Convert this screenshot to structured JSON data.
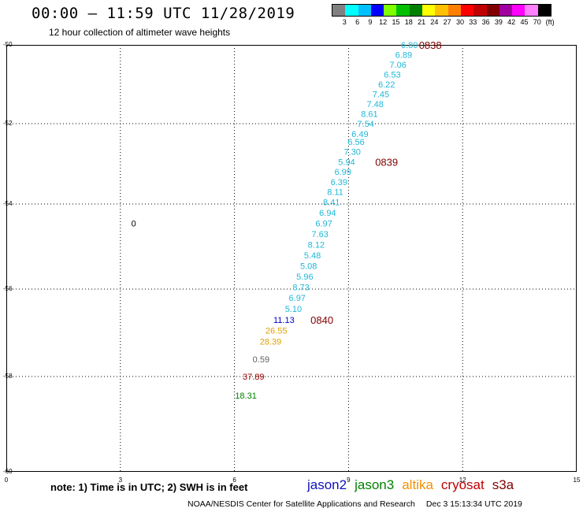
{
  "header": {
    "title": "00:00 – 11:59 UTC 11/28/2019",
    "subtitle": "12 hour collection of altimeter wave heights"
  },
  "scale": {
    "colors": [
      "#808080",
      "#00ffff",
      "#00c0ff",
      "#0000ff",
      "#80ff00",
      "#00c000",
      "#008000",
      "#ffff00",
      "#ffc000",
      "#ff8000",
      "#ff0000",
      "#c00000",
      "#800000",
      "#a000a0",
      "#ff00ff",
      "#ff80ff",
      "#000000"
    ],
    "labels": [
      "3",
      "6",
      "9",
      "12",
      "15",
      "18",
      "21",
      "24",
      "27",
      "30",
      "33",
      "36",
      "39",
      "42",
      "45",
      "70",
      "(ft)"
    ]
  },
  "chart_data": {
    "type": "scatter",
    "title": "00:00 – 11:59 UTC 11/28/2019",
    "subtitle": "12 hour collection of altimeter wave heights",
    "x_ticks": [
      "0",
      "3",
      "6",
      "9",
      "12",
      "15"
    ],
    "y_ticks": [
      "-50",
      "-52",
      "-54",
      "-56",
      "-58",
      "-60"
    ],
    "xlim": [
      0,
      15
    ],
    "ylim": [
      -60,
      -50
    ],
    "grid": true,
    "points": [
      {
        "x": 10.6,
        "y": -50.0,
        "label": "6.80",
        "color": "#1fb8d8"
      },
      {
        "x": 10.45,
        "y": -50.25,
        "label": "6.89",
        "color": "#1fb8d8"
      },
      {
        "x": 10.3,
        "y": -50.5,
        "label": "7.06",
        "color": "#1fb8d8"
      },
      {
        "x": 10.15,
        "y": -50.75,
        "label": "6.53",
        "color": "#1fb8d8"
      },
      {
        "x": 10.0,
        "y": -51.0,
        "label": "6.22",
        "color": "#1fb8d8"
      },
      {
        "x": 9.85,
        "y": -51.25,
        "label": "7.45",
        "color": "#1fb8d8"
      },
      {
        "x": 9.7,
        "y": -51.5,
        "label": "7.48",
        "color": "#1fb8d8"
      },
      {
        "x": 9.55,
        "y": -51.75,
        "label": "8.61",
        "color": "#1fb8d8"
      },
      {
        "x": 9.45,
        "y": -52.0,
        "label": "7.54",
        "color": "#1fb8d8"
      },
      {
        "x": 9.3,
        "y": -52.25,
        "label": "6.49",
        "color": "#1fb8d8"
      },
      {
        "x": 9.2,
        "y": -52.45,
        "label": "6.56",
        "color": "#1fb8d8"
      },
      {
        "x": 9.1,
        "y": -52.7,
        "label": "7.30",
        "color": "#1fb8d8"
      },
      {
        "x": 8.95,
        "y": -52.95,
        "label": "5.94",
        "color": "#1fb8d8"
      },
      {
        "x": 8.85,
        "y": -53.2,
        "label": "6.99",
        "color": "#1fb8d8"
      },
      {
        "x": 8.75,
        "y": -53.45,
        "label": "6.39",
        "color": "#1fb8d8"
      },
      {
        "x": 8.65,
        "y": -53.7,
        "label": "8.11",
        "color": "#1fb8d8"
      },
      {
        "x": 8.55,
        "y": -53.95,
        "label": "8.41",
        "color": "#1fb8d8"
      },
      {
        "x": 8.45,
        "y": -54.2,
        "label": "6.94",
        "color": "#1fb8d8"
      },
      {
        "x": 8.35,
        "y": -54.45,
        "label": "6.97",
        "color": "#1fb8d8"
      },
      {
        "x": 8.25,
        "y": -54.7,
        "label": "7.63",
        "color": "#1fb8d8"
      },
      {
        "x": 8.15,
        "y": -54.95,
        "label": "8.12",
        "color": "#1fb8d8"
      },
      {
        "x": 8.05,
        "y": -55.2,
        "label": "5.48",
        "color": "#1fb8d8"
      },
      {
        "x": 7.95,
        "y": -55.45,
        "label": "5.08",
        "color": "#1fb8d8"
      },
      {
        "x": 7.85,
        "y": -55.7,
        "label": "5.96",
        "color": "#1fb8d8"
      },
      {
        "x": 7.75,
        "y": -55.95,
        "label": "8.73",
        "color": "#1fb8d8"
      },
      {
        "x": 7.65,
        "y": -56.2,
        "label": "6.97",
        "color": "#1fb8d8"
      },
      {
        "x": 7.55,
        "y": -56.45,
        "label": "5.10",
        "color": "#1fb8d8"
      },
      {
        "x": 7.3,
        "y": -56.7,
        "label": "11.13",
        "color": "#0000c0"
      },
      {
        "x": 7.1,
        "y": -56.95,
        "label": "26.55",
        "color": "#e0a000"
      },
      {
        "x": 6.95,
        "y": -57.2,
        "label": "28.39",
        "color": "#e0a000"
      },
      {
        "x": 6.7,
        "y": -57.6,
        "label": "0.59",
        "color": "#606060"
      },
      {
        "x": 6.5,
        "y": -58.0,
        "label": "37.89",
        "color": "#a00000"
      },
      {
        "x": 6.3,
        "y": -58.4,
        "label": "18.31",
        "color": "#008000"
      },
      {
        "x": 3.35,
        "y": -54.45,
        "label": "0",
        "color": "#000000"
      }
    ],
    "time_markers": [
      {
        "x": 11.15,
        "y": -50.0,
        "label": "0838"
      },
      {
        "x": 10.0,
        "y": -52.95,
        "label": "0839"
      },
      {
        "x": 8.3,
        "y": -56.7,
        "label": "0840"
      }
    ]
  },
  "footer": {
    "note": "note: 1) Time is in UTC; 2) SWH is in feet",
    "satellites": [
      {
        "name": "jason2",
        "color": "#1010c0"
      },
      {
        "name": "jason3",
        "color": "#008000"
      },
      {
        "name": "altika",
        "color": "#f09000"
      },
      {
        "name": "cryosat",
        "color": "#c00000"
      },
      {
        "name": "s3a",
        "color": "#800000"
      }
    ],
    "credit": "NOAA/NESDIS Center for Satellite Applications and Research",
    "timestamp": "Dec  3 15:13:34 UTC 2019"
  }
}
